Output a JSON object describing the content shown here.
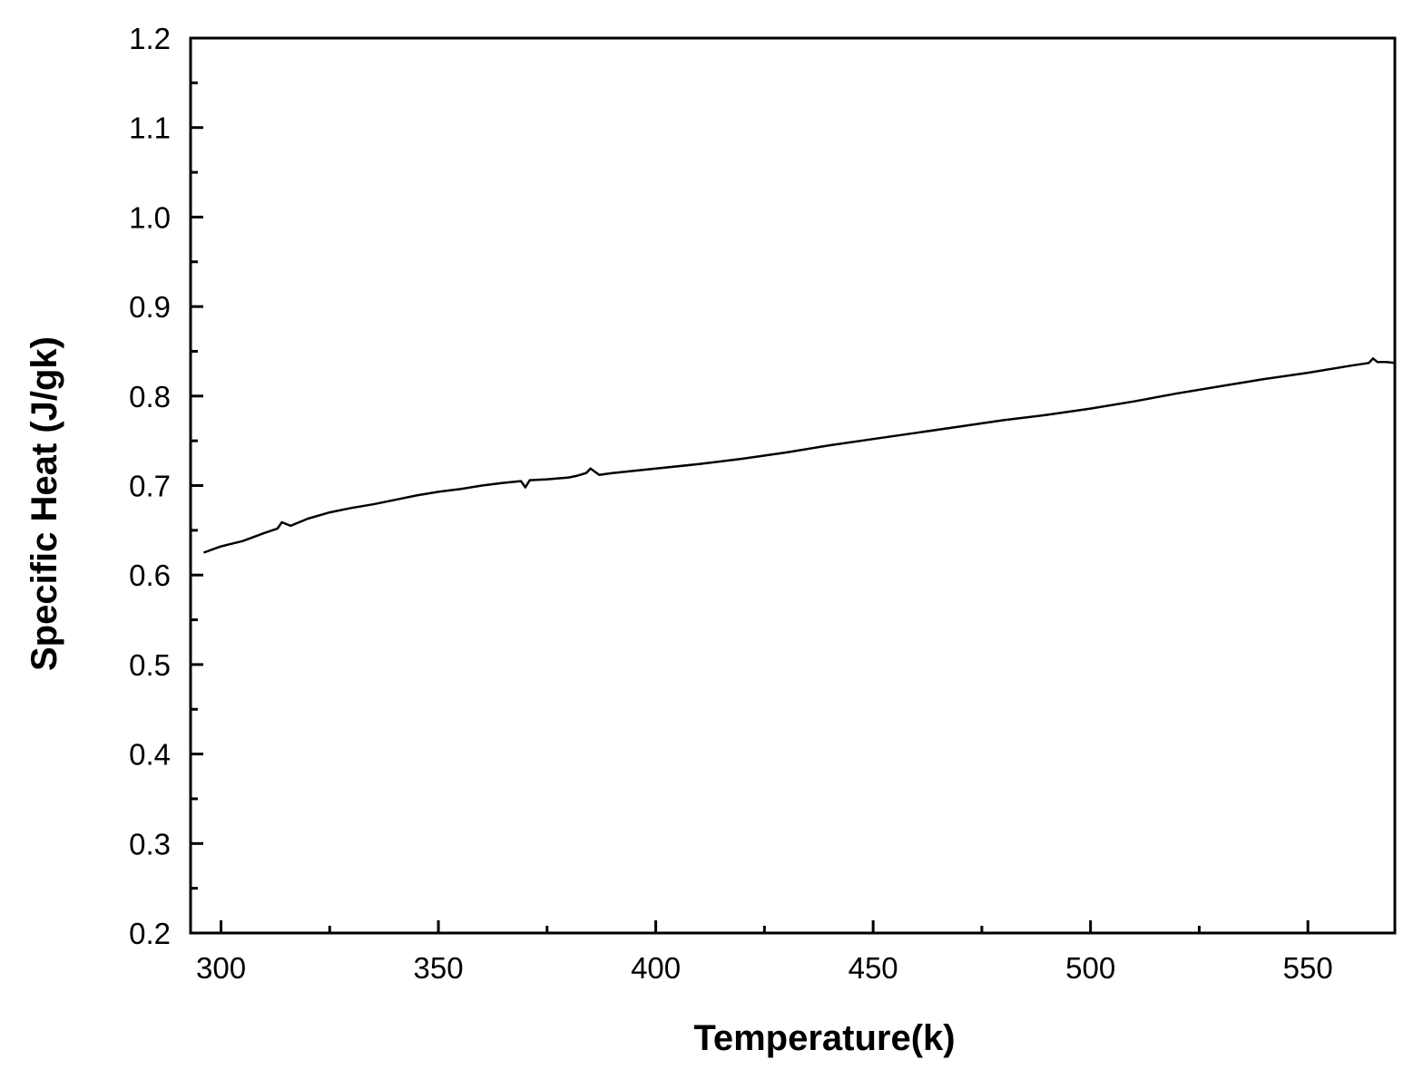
{
  "chart_data": {
    "type": "line",
    "title": "",
    "xlabel": "Temperature(k)",
    "ylabel": "Specific Heat (J/gk)",
    "xlim": [
      293,
      570
    ],
    "ylim": [
      0.2,
      1.2
    ],
    "x_ticks": [
      300,
      350,
      400,
      450,
      500,
      550
    ],
    "x_tick_labels": [
      "300",
      "350",
      "400",
      "450",
      "500",
      "550"
    ],
    "y_ticks": [
      0.2,
      0.3,
      0.4,
      0.5,
      0.6,
      0.7,
      0.8,
      0.9,
      1.0,
      1.1,
      1.2
    ],
    "y_tick_labels": [
      "0.2",
      "0.3",
      "0.4",
      "0.5",
      "0.6",
      "0.7",
      "0.8",
      "0.9",
      "1.0",
      "1.1",
      "1.2"
    ],
    "grid": false,
    "legend": "none",
    "line_color": "#000000",
    "series": [
      {
        "x": [
          296,
          300,
          305,
          310,
          313,
          314,
          316,
          320,
          325,
          330,
          335,
          340,
          345,
          350,
          355,
          360,
          365,
          369,
          370,
          371,
          375,
          380,
          382,
          384,
          385,
          387,
          390,
          400,
          410,
          420,
          430,
          440,
          450,
          460,
          470,
          480,
          490,
          500,
          510,
          520,
          530,
          540,
          550,
          560,
          564,
          565,
          566,
          568,
          570
        ],
        "y": [
          0.625,
          0.632,
          0.638,
          0.647,
          0.652,
          0.659,
          0.655,
          0.663,
          0.67,
          0.675,
          0.679,
          0.684,
          0.689,
          0.693,
          0.696,
          0.7,
          0.703,
          0.705,
          0.698,
          0.706,
          0.707,
          0.709,
          0.711,
          0.714,
          0.719,
          0.712,
          0.714,
          0.719,
          0.724,
          0.73,
          0.737,
          0.745,
          0.752,
          0.759,
          0.766,
          0.773,
          0.779,
          0.786,
          0.794,
          0.803,
          0.811,
          0.819,
          0.826,
          0.834,
          0.837,
          0.842,
          0.838,
          0.838,
          0.837
        ]
      }
    ]
  }
}
